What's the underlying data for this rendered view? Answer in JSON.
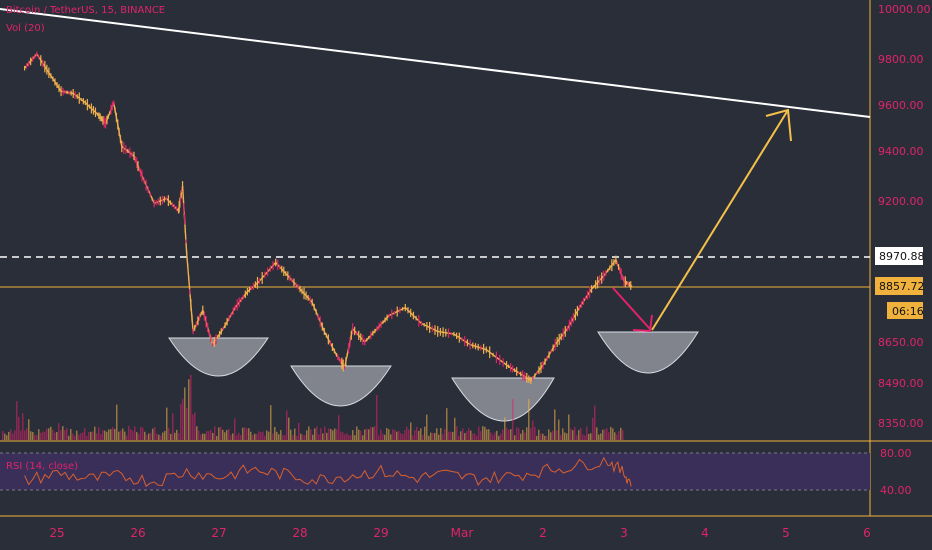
{
  "header": {
    "title": "Bitcoin / TetherUS, 15, BINANCE",
    "volume": "Vol (20)"
  },
  "colors": {
    "background": "#2a2e39",
    "candle_up": "#f2b04d",
    "candle_down": "#e0236a",
    "axis_text": "#e0236a",
    "price_line": "#f0b23c",
    "trend_line": "#ffffff",
    "arrow_up": "#f5c04a",
    "arrow_down": "#e0236a",
    "rsi_band": "#3a2f58",
    "rsi_line": "#d9602d"
  },
  "chart_data": {
    "type": "line",
    "title": "Bitcoin / TetherUS, 15, BINANCE",
    "xlabel": "",
    "ylabel": "",
    "x_ticks": [
      "25",
      "26",
      "27",
      "28",
      "29",
      "Mar",
      "2",
      "3",
      "4",
      "5",
      "6"
    ],
    "y_ticks": [
      10000,
      9800,
      9600,
      9400,
      9200,
      8650,
      8490,
      8350
    ],
    "ylim": [
      8300,
      10050
    ],
    "price_labels": {
      "resistance": "8970.88",
      "current": "8857.72",
      "countdown": "06:16"
    },
    "price_path": [
      {
        "x": 24.6,
        "y": 9760
      },
      {
        "x": 24.75,
        "y": 9820
      },
      {
        "x": 24.9,
        "y": 9740
      },
      {
        "x": 25.05,
        "y": 9660
      },
      {
        "x": 25.2,
        "y": 9650
      },
      {
        "x": 25.35,
        "y": 9610
      },
      {
        "x": 25.5,
        "y": 9560
      },
      {
        "x": 25.6,
        "y": 9520
      },
      {
        "x": 25.7,
        "y": 9610
      },
      {
        "x": 25.8,
        "y": 9420
      },
      {
        "x": 25.95,
        "y": 9380
      },
      {
        "x": 26.05,
        "y": 9300
      },
      {
        "x": 26.2,
        "y": 9190
      },
      {
        "x": 26.35,
        "y": 9210
      },
      {
        "x": 26.5,
        "y": 9160
      },
      {
        "x": 26.55,
        "y": 9260
      },
      {
        "x": 26.6,
        "y": 8990
      },
      {
        "x": 26.68,
        "y": 8690
      },
      {
        "x": 26.8,
        "y": 8770
      },
      {
        "x": 26.92,
        "y": 8640
      },
      {
        "x": 27.05,
        "y": 8700
      },
      {
        "x": 27.2,
        "y": 8780
      },
      {
        "x": 27.35,
        "y": 8840
      },
      {
        "x": 27.5,
        "y": 8880
      },
      {
        "x": 27.7,
        "y": 8950
      },
      {
        "x": 27.85,
        "y": 8900
      },
      {
        "x": 28.0,
        "y": 8850
      },
      {
        "x": 28.15,
        "y": 8800
      },
      {
        "x": 28.3,
        "y": 8690
      },
      {
        "x": 28.45,
        "y": 8600
      },
      {
        "x": 28.55,
        "y": 8550
      },
      {
        "x": 28.65,
        "y": 8700
      },
      {
        "x": 28.8,
        "y": 8650
      },
      {
        "x": 28.95,
        "y": 8700
      },
      {
        "x": 29.1,
        "y": 8750
      },
      {
        "x": 29.3,
        "y": 8780
      },
      {
        "x": 29.5,
        "y": 8720
      },
      {
        "x": 29.7,
        "y": 8690
      },
      {
        "x": 29.9,
        "y": 8680
      },
      {
        "x": 30.1,
        "y": 8640
      },
      {
        "x": 30.3,
        "y": 8620
      },
      {
        "x": 30.55,
        "y": 8560
      },
      {
        "x": 30.7,
        "y": 8530
      },
      {
        "x": 30.85,
        "y": 8500
      },
      {
        "x": 31.0,
        "y": 8560
      },
      {
        "x": 31.15,
        "y": 8640
      },
      {
        "x": 31.3,
        "y": 8700
      },
      {
        "x": 31.45,
        "y": 8780
      },
      {
        "x": 31.6,
        "y": 8850
      },
      {
        "x": 31.75,
        "y": 8900
      },
      {
        "x": 31.9,
        "y": 8960
      },
      {
        "x": 32.0,
        "y": 8880
      },
      {
        "x": 32.1,
        "y": 8860
      }
    ],
    "rsi": {
      "label": "RSI (14, close)",
      "upper": 80,
      "lower": 40,
      "ylim": [
        20,
        90
      ],
      "y_ticks": [
        80.0,
        40.0
      ],
      "values": [
        {
          "x": 24.6,
          "y": 50
        },
        {
          "x": 25.0,
          "y": 58
        },
        {
          "x": 25.4,
          "y": 52
        },
        {
          "x": 25.8,
          "y": 55
        },
        {
          "x": 26.2,
          "y": 49
        },
        {
          "x": 26.6,
          "y": 60
        },
        {
          "x": 27.0,
          "y": 54
        },
        {
          "x": 27.4,
          "y": 62
        },
        {
          "x": 27.8,
          "y": 57
        },
        {
          "x": 28.2,
          "y": 51
        },
        {
          "x": 28.6,
          "y": 56
        },
        {
          "x": 29.0,
          "y": 60
        },
        {
          "x": 29.4,
          "y": 53
        },
        {
          "x": 29.8,
          "y": 57
        },
        {
          "x": 30.2,
          "y": 52
        },
        {
          "x": 30.6,
          "y": 55
        },
        {
          "x": 31.0,
          "y": 61
        },
        {
          "x": 31.4,
          "y": 66
        },
        {
          "x": 31.8,
          "y": 72
        },
        {
          "x": 32.0,
          "y": 58
        },
        {
          "x": 32.1,
          "y": 47
        }
      ]
    }
  }
}
